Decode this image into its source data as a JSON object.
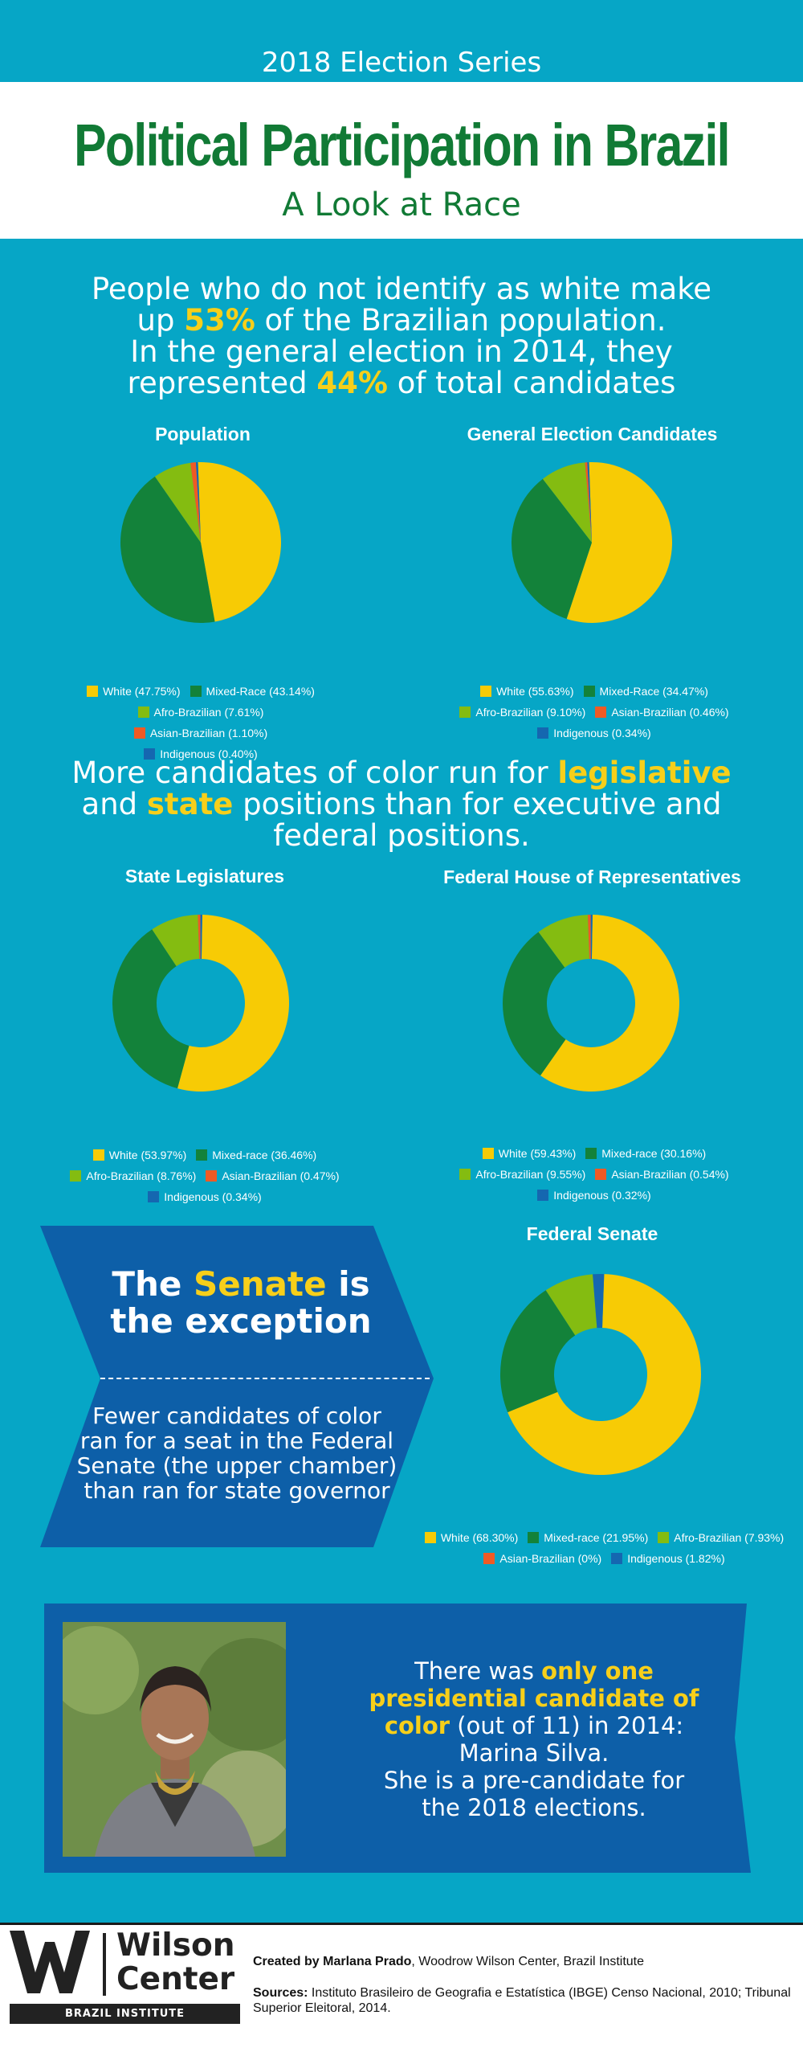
{
  "header": {
    "series": "2018 Election Series",
    "title": "Political Participation in Brazil",
    "subtitle": "A Look at Race"
  },
  "intro1": {
    "line1": "People who do not identify as white make",
    "line2_a": "up ",
    "line2_b": "53%",
    "line2_c": " of the Brazilian population.",
    "line3": "In the general election in 2014, they",
    "line4_a": "represented ",
    "line4_b": "44%",
    "line4_c": " of total candidates"
  },
  "intro2": {
    "line1_a": "More candidates of color run for ",
    "line1_b": "legislative",
    "line2_a": "and ",
    "line2_b": "state",
    "line2_c": " positions than for executive and",
    "line3": "federal positions."
  },
  "colors": {
    "white": "#f7cb05",
    "mixed": "#13823a",
    "afro": "#84bc11",
    "asian": "#ef5a24",
    "indigenous": "#1567b0",
    "background": "#06a6c6",
    "title_green": "#117a35",
    "box_blue": "#0d5fa8"
  },
  "chart_data": [
    {
      "type": "pie",
      "title": "Population",
      "categories": [
        "White",
        "Mixed-Race",
        "Afro-Brazilian",
        "Asian-Brazilian",
        "Indigenous"
      ],
      "values": [
        47.75,
        43.14,
        7.61,
        1.1,
        0.4
      ],
      "legend": [
        "White (47.75%)",
        "Mixed-Race (43.14%)",
        "Afro-Brazilian (7.61%)",
        "Asian-Brazilian (1.10%)",
        "Indigenous (0.40%)"
      ]
    },
    {
      "type": "pie",
      "title": "General Election Candidates",
      "categories": [
        "White",
        "Mixed-Race",
        "Afro-Brazilian",
        "Asian-Brazilian",
        "Indigenous"
      ],
      "values": [
        55.63,
        34.47,
        9.1,
        0.46,
        0.34
      ],
      "legend": [
        "White (55.63%)",
        "Mixed-Race (34.47%)",
        "Afro-Brazilian (9.10%)",
        "Asian-Brazilian (0.46%)",
        "Indigenous (0.34%)"
      ]
    },
    {
      "type": "pie",
      "donut": true,
      "title": "State Legislatures",
      "categories": [
        "White",
        "Mixed-race",
        "Afro-Brazilian",
        "Asian-Brazilian",
        "Indigenous"
      ],
      "values": [
        53.97,
        36.46,
        8.76,
        0.47,
        0.34
      ],
      "legend": [
        "White (53.97%)",
        "Mixed-race (36.46%)",
        "Afro-Brazilian (8.76%)",
        "Asian-Brazilian (0.47%)",
        "Indigenous (0.34%)"
      ]
    },
    {
      "type": "pie",
      "donut": true,
      "title": "Federal House of Representatives",
      "categories": [
        "White",
        "Mixed-race",
        "Afro-Brazilian",
        "Asian-Brazilian",
        "Indigenous"
      ],
      "values": [
        59.43,
        30.16,
        9.55,
        0.54,
        0.32
      ],
      "legend": [
        "White (59.43%)",
        "Mixed-race (30.16%)",
        "Afro-Brazilian (9.55%)",
        "Asian-Brazilian (0.54%)",
        "Indigenous (0.32%)"
      ]
    },
    {
      "type": "pie",
      "donut": true,
      "title": "Federal Senate",
      "categories": [
        "White",
        "Mixed-race",
        "Afro-Brazilian",
        "Asian-Brazilian",
        "Indigenous"
      ],
      "values": [
        68.3,
        21.95,
        7.93,
        0,
        1.82
      ],
      "legend": [
        "White (68.30%)",
        "Mixed-race (21.95%)",
        "Afro-Brazilian (7.93%)",
        "Asian-Brazilian (0%)",
        "Indigenous (1.82%)"
      ]
    }
  ],
  "senate": {
    "head_a": "The ",
    "head_b": "Senate",
    "head_c": " is",
    "head_d": "the exception",
    "body": "Fewer candidates of color ran for a seat in the Federal Senate (the upper chamber) than ran for state governor"
  },
  "president": {
    "line1": "There was ",
    "hl1": "only one",
    "hl2": "presidential candidate of",
    "hl3": "color",
    "line3": " (out of 11) in 2014:",
    "line4": "Marina Silva.",
    "line5": "She is a pre-candidate for",
    "line6": "the 2018 elections."
  },
  "footer": {
    "logo_line1": "Wilson",
    "logo_line2": "Center",
    "logo_band": "BRAZIL INSTITUTE",
    "credit_label": "Created by Marlana Prado",
    "credit_rest": ", Woodrow Wilson Center, Brazil Institute",
    "sources_label": "Sources:",
    "sources_text": " Instituto Brasileiro de Geografia e Estatística (IBGE) Censo Nacional, 2010; Tribunal Superior Eleitoral, 2014."
  }
}
